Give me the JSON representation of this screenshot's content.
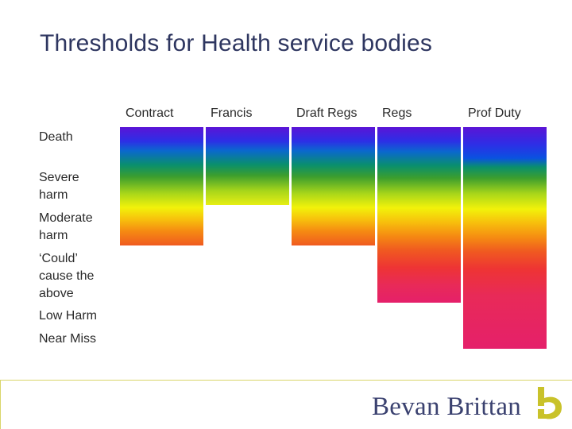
{
  "title": "Thresholds for Health service bodies",
  "columns": [
    "Contract",
    "Francis",
    "Draft Regs",
    "Regs",
    "Prof Duty"
  ],
  "rows": [
    {
      "label": "Death"
    },
    {
      "label": "Severe harm"
    },
    {
      "label": "Moderate harm"
    },
    {
      "label": "‘Could’ cause the above"
    },
    {
      "label": "Low Harm"
    },
    {
      "label": "Near Miss"
    }
  ],
  "footer": {
    "brand": "Bevan Brittan",
    "logo_icon": "bevan-brittan-b-mark"
  }
}
